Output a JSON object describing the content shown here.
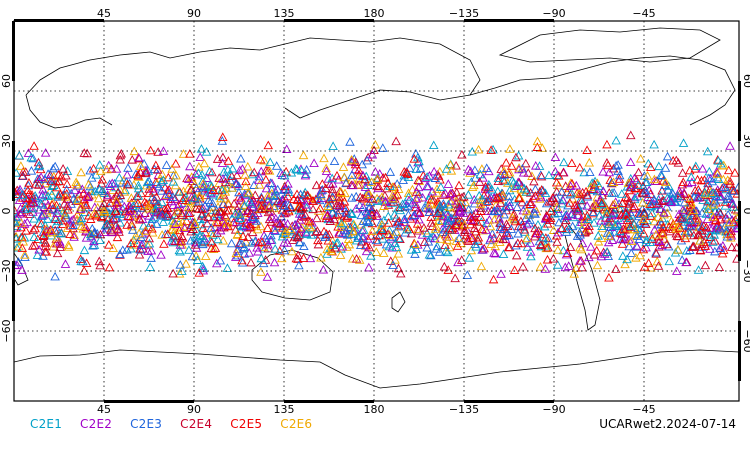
{
  "map": {
    "top_longitude_labels": [
      "45",
      "90",
      "135",
      "180",
      "−135",
      "−90",
      "−45"
    ],
    "bottom_longitude_labels": [
      "45",
      "90",
      "135",
      "180",
      "−135",
      "−90",
      "−45"
    ],
    "latitude_labels": [
      "60",
      "30",
      "0",
      "−30",
      "−60"
    ],
    "grid": true,
    "marker_shape": "open-triangle",
    "observation_lat_range": [
      -40,
      40
    ],
    "observation_lon_range": [
      0,
      360
    ]
  },
  "legend": {
    "items": [
      {
        "label": "C2E1",
        "color": "#00a0c8"
      },
      {
        "label": "C2E2",
        "color": "#a000c8"
      },
      {
        "label": "C2E3",
        "color": "#1e64dc"
      },
      {
        "label": "C2E4",
        "color": "#c8002a"
      },
      {
        "label": "C2E5",
        "color": "#f00000"
      },
      {
        "label": "C2E6",
        "color": "#f0a800"
      }
    ]
  },
  "caption": "UCARwet2.2024-07-14"
}
